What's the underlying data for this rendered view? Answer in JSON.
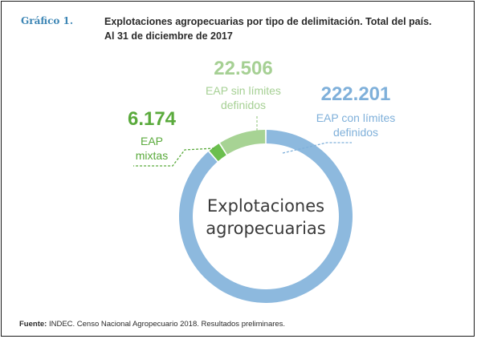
{
  "figure": {
    "label": "Gráfico 1.",
    "title_line1": "Explotaciones agropecuarias por tipo de delimitación. Total del país.",
    "title_line2": "Al 31 de diciembre de 2017"
  },
  "source": {
    "prefix": "Fuente:",
    "text": " INDEC. Censo Nacional Agropecuario 2018. Resultados preliminares."
  },
  "chart_data": {
    "type": "pie",
    "style": "donut",
    "center_label": [
      "Explotaciones",
      "agropecuarias"
    ],
    "slices": [
      {
        "value_label": "222.201",
        "value": 222201,
        "label": [
          "EAP con límites",
          "definidos"
        ],
        "color": "#8db9de"
      },
      {
        "value_label": "6.174",
        "value": 6174,
        "label": [
          "EAP",
          "mixtas"
        ],
        "color": "#6bbf4e"
      },
      {
        "value_label": "22.506",
        "value": 22506,
        "label": [
          "EAP sin límites",
          "definidos"
        ],
        "color": "#a7d394"
      }
    ],
    "label_colors": [
      "#7fb0da",
      "#5aaa3c",
      "#a6d094"
    ]
  }
}
